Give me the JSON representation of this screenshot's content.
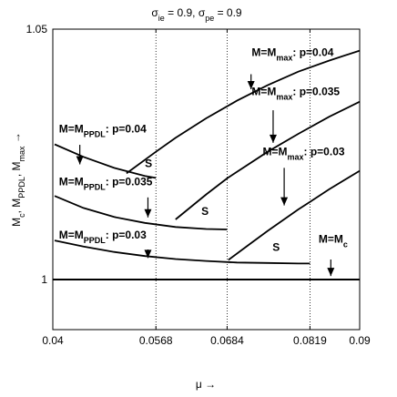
{
  "chart_data": {
    "type": "line",
    "title": "σ_ie = 0.9, σ_pe = 0.9",
    "xlabel": "μ →",
    "ylabel": "M_c, M_PPDL, M_max →",
    "xlim": [
      0.04,
      0.09
    ],
    "ylim": [
      0.99,
      1.05
    ],
    "xticks": [
      "0.04",
      "0.0568",
      "0.0684",
      "0.0819",
      "0.09"
    ],
    "yticks": [
      "1",
      "1.05"
    ],
    "xtick_values": [
      0.04,
      0.0568,
      0.0684,
      0.0819,
      0.09
    ],
    "ytick_values": [
      1,
      1.05
    ],
    "vlines": [
      0.0568,
      0.0684,
      0.0819
    ],
    "grid": false,
    "series": [
      {
        "name": "M=M_c",
        "x": [
          0.04,
          0.09
        ],
        "y": [
          1.0,
          1.0
        ]
      },
      {
        "name": "M=M_PPDL: p=0.04",
        "x": [
          0.0403,
          0.045,
          0.05,
          0.055,
          0.0568
        ],
        "y": [
          1.027,
          1.0245,
          1.0223,
          1.0207,
          1.0203
        ]
      },
      {
        "name": "M=M_PPDL: p=0.035",
        "x": [
          0.0403,
          0.045,
          0.05,
          0.055,
          0.06,
          0.065,
          0.0684
        ],
        "y": [
          1.0167,
          1.0143,
          1.0125,
          1.0113,
          1.0105,
          1.0101,
          1.01
        ]
      },
      {
        "name": "M=M_PPDL: p=0.03",
        "x": [
          0.0403,
          0.045,
          0.05,
          0.055,
          0.06,
          0.065,
          0.07,
          0.075,
          0.08,
          0.0819
        ],
        "y": [
          1.0078,
          1.0066,
          1.0055,
          1.0047,
          1.0041,
          1.0037,
          1.0034,
          1.0033,
          1.0032,
          1.0032
        ]
      },
      {
        "name": "M=M_max: p=0.04",
        "x": [
          0.052,
          0.0568,
          0.06,
          0.065,
          0.07,
          0.075,
          0.08,
          0.085,
          0.09
        ],
        "y": [
          1.0212,
          1.0255,
          1.0283,
          1.0322,
          1.0357,
          1.0388,
          1.0415,
          1.0437,
          1.0457
        ]
      },
      {
        "name": "M=M_max: p=0.035",
        "x": [
          0.06,
          0.065,
          0.0684,
          0.07,
          0.075,
          0.08,
          0.085,
          0.09
        ],
        "y": [
          1.012,
          1.017,
          1.0202,
          1.0215,
          1.0255,
          1.0291,
          1.0325,
          1.0355
        ]
      },
      {
        "name": "M=M_max: p=0.03",
        "x": [
          0.0686,
          0.072,
          0.075,
          0.08,
          0.0819,
          0.085,
          0.09
        ],
        "y": [
          1.0039,
          1.007,
          1.0097,
          1.014,
          1.0155,
          1.018,
          1.0217
        ]
      }
    ],
    "annotations": [
      {
        "text": "M=M",
        "sub": "max",
        "tail": ": p=0.04",
        "at": [
          0.0724,
          1.0446
        ],
        "arrow_from": [
          0.0723,
          1.041
        ],
        "arrow_to": [
          0.0723,
          1.038
        ]
      },
      {
        "text": "M=M",
        "sub": "max",
        "tail": ": p=0.035",
        "at": [
          0.0724,
          1.0368
        ],
        "arrow_from": [
          0.0759,
          1.0338
        ],
        "arrow_to": [
          0.0759,
          1.0273
        ]
      },
      {
        "text": "M=M",
        "sub": "max",
        "tail": ": p=0.03",
        "at": [
          0.0742,
          1.0248
        ],
        "arrow_from": [
          0.0777,
          1.0223
        ],
        "arrow_to": [
          0.0777,
          1.0148
        ]
      },
      {
        "text": "M=M",
        "sub": "PPDL",
        "tail": ": p=0.04",
        "at": [
          0.041,
          1.0294
        ],
        "arrow_from": [
          0.0444,
          1.0269
        ],
        "arrow_to": [
          0.0444,
          1.023
        ]
      },
      {
        "text": "M=M",
        "sub": "PPDL",
        "tail": ": p=0.035",
        "at": [
          0.041,
          1.0188
        ],
        "arrow_from": [
          0.0555,
          1.0164
        ],
        "arrow_to": [
          0.0555,
          1.0124
        ]
      },
      {
        "text": "M=M",
        "sub": "PPDL",
        "tail": ": p=0.03",
        "at": [
          0.041,
          1.0082
        ],
        "arrow_from": [
          0.0555,
          1.006
        ],
        "arrow_to": [
          0.0555,
          1.0043
        ]
      },
      {
        "text": "M=M",
        "sub": "c",
        "tail": "",
        "at": [
          0.0833,
          1.0074
        ],
        "arrow_from": [
          0.0853,
          1.004
        ],
        "arrow_to": [
          0.0853,
          1.0007
        ]
      }
    ],
    "stable_labels": [
      {
        "text": "S",
        "at": [
          0.055,
          1.0225
        ]
      },
      {
        "text": "S",
        "at": [
          0.0642,
          1.0129
        ]
      },
      {
        "text": "S",
        "at": [
          0.0758,
          1.0057
        ]
      }
    ]
  }
}
